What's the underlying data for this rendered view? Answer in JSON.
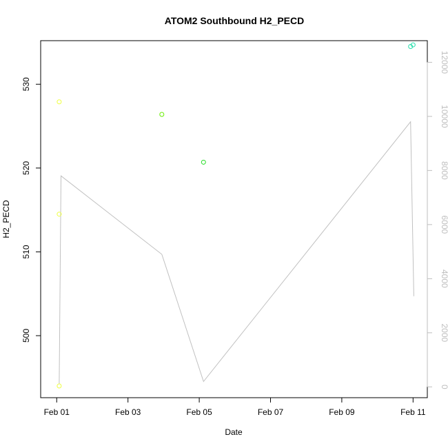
{
  "chart_data": {
    "type": "scatter",
    "title": "ATOM2 Southbound H2_PECD",
    "xlabel": "Date",
    "ylabel": "H2_PECD",
    "y2label": "",
    "x_tick_labels": [
      "Feb 01",
      "Feb 03",
      "Feb 05",
      "Feb 07",
      "Feb 09",
      "Feb 11"
    ],
    "x_ticks_days": [
      1,
      3,
      5,
      7,
      9,
      11
    ],
    "xlim_days": [
      0.55,
      11.4
    ],
    "y_ticks": [
      500,
      510,
      520,
      530
    ],
    "ylim": [
      492.6,
      535.2
    ],
    "y2_ticks": [
      0,
      2000,
      4000,
      6000,
      8000,
      10000,
      12000
    ],
    "y2lim": [
      -400,
      12800
    ],
    "grid": false,
    "series": [
      {
        "kind": "points",
        "points": [
          {
            "x": 1.07,
            "y": 527.9,
            "color": "#eeff41"
          },
          {
            "x": 1.07,
            "y": 514.5,
            "color": "#eeff41"
          },
          {
            "x": 1.07,
            "y": 494.0,
            "color": "#eeff41"
          },
          {
            "x": 3.95,
            "y": 526.4,
            "color": "#66ee00"
          },
          {
            "x": 5.12,
            "y": 520.7,
            "color": "#22dd22"
          },
          {
            "x": 10.93,
            "y": 534.5,
            "color": "#22ddaa"
          },
          {
            "x": 11.0,
            "y": 534.7,
            "color": "#22ddaa"
          }
        ]
      },
      {
        "kind": "line",
        "axis": "right",
        "color": "#c0c0c0",
        "points": [
          {
            "x": 1.07,
            "y": 100
          },
          {
            "x": 1.12,
            "y": 7800
          },
          {
            "x": 3.95,
            "y": 4900
          },
          {
            "x": 5.12,
            "y": 200
          },
          {
            "x": 10.93,
            "y": 9800
          },
          {
            "x": 11.02,
            "y": 3350
          }
        ]
      }
    ]
  }
}
